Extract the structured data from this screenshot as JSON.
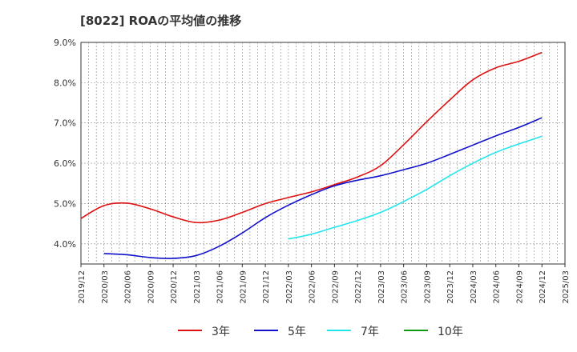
{
  "chart_data": {
    "type": "line",
    "title": "[8022]  ROAの平均値の推移",
    "xlabel": "",
    "ylabel": "",
    "x_ticks": [
      "2019/12",
      "2020/03",
      "2020/06",
      "2020/09",
      "2020/12",
      "2021/03",
      "2021/06",
      "2021/09",
      "2021/12",
      "2022/03",
      "2022/06",
      "2022/09",
      "2022/12",
      "2023/03",
      "2023/06",
      "2023/09",
      "2023/12",
      "2024/03",
      "2024/06",
      "2024/09",
      "2024/12",
      "2025/03"
    ],
    "y_ticks": [
      "4.0%",
      "5.0%",
      "6.0%",
      "7.0%",
      "8.0%",
      "9.0%"
    ],
    "ylim": [
      3.5,
      9.0
    ],
    "grid": true,
    "legend_position": "bottom",
    "series": [
      {
        "name": "3年",
        "color": "#dd1111",
        "x": [
          "2019/12",
          "2020/03",
          "2020/06",
          "2020/09",
          "2020/12",
          "2021/03",
          "2021/06",
          "2021/09",
          "2021/12",
          "2022/03",
          "2022/06",
          "2022/09",
          "2022/12",
          "2023/03",
          "2023/06",
          "2023/09",
          "2023/12",
          "2024/03",
          "2024/06",
          "2024/09",
          "2024/12"
        ],
        "values": [
          4.63,
          4.95,
          5.01,
          4.87,
          4.67,
          4.53,
          4.59,
          4.78,
          5.0,
          5.15,
          5.29,
          5.47,
          5.66,
          5.94,
          6.46,
          7.03,
          7.57,
          8.07,
          8.37,
          8.53,
          8.75
        ]
      },
      {
        "name": "5年",
        "color": "#1111cc",
        "x": [
          "2020/03",
          "2020/06",
          "2020/09",
          "2020/12",
          "2021/03",
          "2021/06",
          "2021/09",
          "2021/12",
          "2022/03",
          "2022/06",
          "2022/09",
          "2022/12",
          "2023/03",
          "2023/06",
          "2023/09",
          "2023/12",
          "2024/03",
          "2024/06",
          "2024/09",
          "2024/12"
        ],
        "values": [
          3.76,
          3.73,
          3.66,
          3.64,
          3.71,
          3.94,
          4.27,
          4.65,
          4.96,
          5.22,
          5.44,
          5.58,
          5.69,
          5.84,
          6.0,
          6.22,
          6.45,
          6.68,
          6.89,
          7.13
        ]
      },
      {
        "name": "7年",
        "color": "#22e5ee",
        "x": [
          "2022/03",
          "2022/06",
          "2022/09",
          "2022/12",
          "2023/03",
          "2023/06",
          "2023/09",
          "2023/12",
          "2024/03",
          "2024/06",
          "2024/09",
          "2024/12"
        ],
        "values": [
          4.12,
          4.24,
          4.41,
          4.58,
          4.78,
          5.05,
          5.35,
          5.69,
          6.0,
          6.27,
          6.48,
          6.67
        ]
      },
      {
        "name": "10年",
        "color": "#119911",
        "x": [],
        "values": []
      }
    ]
  }
}
